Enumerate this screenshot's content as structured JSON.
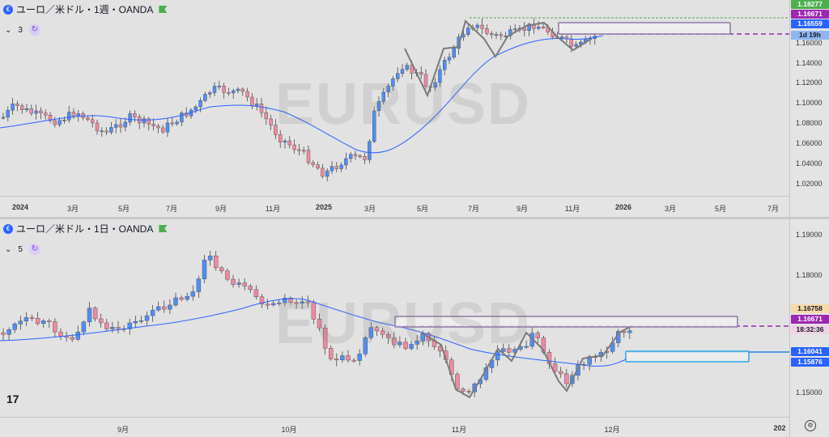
{
  "top_pane": {
    "symbol_label": "ユーロ／米ドル・1週・OANDA",
    "indicator_count": "3",
    "watermark": "EURUSD",
    "price_ticks": [
      "1.16000",
      "1.14000",
      "1.12000",
      "1.10000",
      "1.08000",
      "1.06000",
      "1.04000",
      "1.02000"
    ],
    "time_ticks": [
      {
        "label": "2024",
        "bold": true
      },
      {
        "label": "3月",
        "bold": false
      },
      {
        "label": "5月",
        "bold": false
      },
      {
        "label": "7月",
        "bold": false
      },
      {
        "label": "9月",
        "bold": false
      },
      {
        "label": "11月",
        "bold": false
      },
      {
        "label": "2025",
        "bold": true
      },
      {
        "label": "3月",
        "bold": false
      },
      {
        "label": "5月",
        "bold": false
      },
      {
        "label": "7月",
        "bold": false
      },
      {
        "label": "9月",
        "bold": false
      },
      {
        "label": "11月",
        "bold": false
      },
      {
        "label": "2026",
        "bold": true
      },
      {
        "label": "3月",
        "bold": false
      },
      {
        "label": "5月",
        "bold": false
      },
      {
        "label": "7月",
        "bold": false
      }
    ],
    "price_tags": [
      {
        "text": "1.18277",
        "color": "#4caf50",
        "dark": false
      },
      {
        "text": "1.16671",
        "color": "#9c27b0",
        "dark": false
      },
      {
        "text": "1.16559",
        "color": "#2962ff",
        "dark": false
      },
      {
        "text": "1d 19h",
        "color": "#8fb6f0",
        "dark": true
      }
    ]
  },
  "bottom_pane": {
    "symbol_label": "ユーロ／米ドル・1日・OANDA",
    "indicator_count": "5",
    "watermark": "EURUSD",
    "price_ticks": [
      "1.19000",
      "1.18000",
      "1.15000"
    ],
    "time_ticks": [
      {
        "label": "9月",
        "bold": false
      },
      {
        "label": "10月",
        "bold": false
      },
      {
        "label": "11月",
        "bold": false
      },
      {
        "label": "12月",
        "bold": false
      },
      {
        "label": "202",
        "bold": true
      }
    ],
    "price_tags": [
      {
        "text": "1.16758",
        "color": "#f5d9a8",
        "dark": true
      },
      {
        "text": "1.16671",
        "color": "#9c27b0",
        "dark": false
      },
      {
        "text": "18:32:36",
        "color": "#f0d3e6",
        "dark": true
      },
      {
        "text": "1.16041",
        "color": "#2962ff",
        "dark": false
      },
      {
        "text": "1.15876",
        "color": "#2962ff",
        "dark": false
      }
    ]
  },
  "colors": {
    "up": "#4f8ef7",
    "down": "#f08aa0",
    "ma": "#2962ff",
    "resistance": "#9c27b0",
    "zone_border": "#8e7aa8",
    "support_zone": "#1e88e5",
    "pattern_line": "#7a7a7a",
    "high_line": "#4caf50"
  },
  "icons": {
    "symbol": "euro-flag-icon",
    "flag": "green-flag-icon",
    "sync": "sync-icon",
    "settings": "gear-icon",
    "logo": "tradingview-logo"
  }
}
